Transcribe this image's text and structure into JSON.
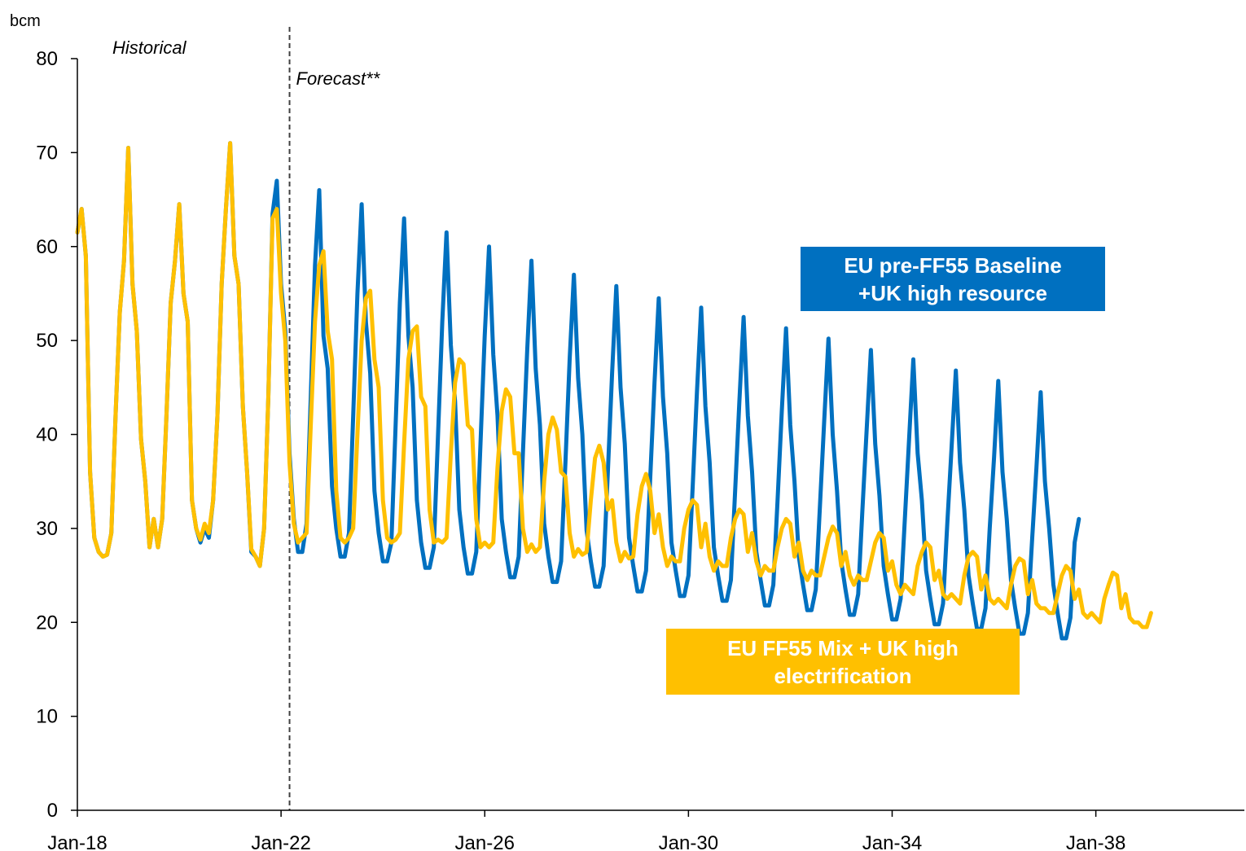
{
  "chart_data": {
    "type": "line",
    "ylabel": "bcm",
    "ylim": [
      0,
      80
    ],
    "yticks": [
      0,
      10,
      20,
      30,
      40,
      50,
      60,
      70,
      80
    ],
    "xlim": [
      "2018-01",
      "2040-12"
    ],
    "xtick_labels": [
      {
        "date": "2018-01",
        "label": "Jan-18"
      },
      {
        "date": "2022-01",
        "label": "Jan-22"
      },
      {
        "date": "2026-01",
        "label": "Jan-26"
      },
      {
        "date": "2030-01",
        "label": "Jan-30"
      },
      {
        "date": "2034-01",
        "label": "Jan-34"
      },
      {
        "date": "2038-01",
        "label": "Jan-38"
      }
    ],
    "grid": false,
    "annotations": {
      "historical": "Historical",
      "forecast": "Forecast**",
      "divider_date": "2022-03"
    },
    "series_start": "2018-01",
    "series": [
      {
        "name": "EU pre-FF55 Baseline\n+UK high resource",
        "color": "#0070C0",
        "values": [
          61.5,
          64.0,
          59.0,
          36.0,
          29.0,
          27.5,
          27.0,
          27.2,
          29.5,
          42.0,
          53.0,
          58.5,
          70.5,
          56.0,
          51.0,
          39.5,
          35.0,
          28.0,
          31.0,
          28.0,
          31.0,
          42.0,
          54.0,
          58.5,
          64.5,
          55.0,
          52.0,
          33.0,
          30.0,
          28.5,
          30.0,
          29.0,
          33.0,
          42.0,
          56.0,
          64.0,
          71.0,
          59.0,
          56.0,
          43.0,
          36.0,
          27.5,
          27.0,
          26.0,
          30.0,
          44.0,
          63.5,
          67.0,
          56.0,
          51.0,
          38.0,
          31.0,
          27.5,
          27.5,
          30.5,
          44.0,
          58.0,
          66.0,
          50.5,
          47.0,
          34.5,
          30.0,
          27.0,
          27.0,
          29.5,
          42.0,
          55.0,
          64.5,
          52.0,
          46.5,
          34.0,
          29.5,
          26.5,
          26.5,
          28.5,
          41.0,
          54.0,
          63.0,
          50.5,
          45.0,
          33.0,
          28.5,
          25.8,
          25.8,
          28.0,
          40.0,
          52.0,
          61.5,
          49.5,
          43.5,
          32.0,
          28.0,
          25.2,
          25.2,
          27.5,
          39.0,
          50.5,
          60.0,
          48.5,
          42.0,
          31.0,
          27.5,
          24.8,
          24.8,
          27.0,
          38.0,
          49.0,
          58.5,
          47.0,
          41.0,
          30.5,
          27.0,
          24.3,
          24.3,
          26.5,
          37.0,
          48.0,
          57.0,
          46.0,
          40.0,
          29.8,
          26.5,
          23.8,
          23.8,
          26.0,
          36.0,
          46.5,
          55.8,
          45.0,
          39.0,
          29.0,
          26.0,
          23.3,
          23.3,
          25.5,
          35.5,
          45.5,
          54.5,
          44.0,
          38.0,
          28.5,
          25.5,
          22.8,
          22.8,
          25.0,
          34.5,
          44.5,
          53.5,
          43.0,
          37.0,
          28.0,
          25.0,
          22.3,
          22.3,
          24.5,
          34.0,
          43.5,
          52.5,
          42.0,
          36.0,
          27.5,
          24.5,
          21.8,
          21.8,
          24.0,
          33.0,
          42.5,
          51.3,
          41.0,
          35.0,
          27.0,
          24.0,
          21.3,
          21.3,
          23.5,
          32.5,
          41.5,
          50.2,
          40.0,
          34.0,
          26.5,
          23.5,
          20.8,
          20.8,
          23.0,
          32.0,
          40.5,
          49.0,
          39.0,
          33.5,
          26.0,
          23.0,
          20.3,
          20.3,
          22.5,
          31.0,
          39.5,
          48.0,
          38.0,
          33.0,
          25.5,
          22.5,
          19.8,
          19.8,
          22.0,
          30.5,
          38.5,
          46.8,
          37.0,
          32.0,
          25.0,
          22.0,
          19.3,
          19.3,
          21.5,
          30.0,
          37.5,
          45.7,
          36.0,
          31.0,
          24.5,
          21.5,
          18.8,
          18.8,
          21.0,
          29.0,
          36.5,
          44.5,
          35.0,
          30.0,
          24.0,
          21.0,
          18.3,
          18.3,
          20.5,
          28.5,
          31.0
        ]
      },
      {
        "name": "EU FF55 Mix + UK high\nelectrification",
        "color": "#FFC000",
        "values": [
          61.5,
          64.0,
          59.0,
          36.0,
          29.0,
          27.5,
          27.0,
          27.2,
          29.5,
          42.0,
          53.0,
          58.5,
          70.5,
          56.0,
          51.0,
          39.5,
          35.0,
          28.0,
          31.0,
          28.0,
          31.0,
          42.0,
          54.0,
          58.5,
          64.5,
          55.0,
          52.0,
          33.0,
          30.0,
          28.8,
          30.5,
          29.5,
          33.0,
          42.0,
          56.0,
          64.0,
          71.0,
          59.0,
          56.0,
          43.0,
          36.0,
          27.8,
          27.0,
          26.0,
          30.0,
          44.0,
          63.0,
          64.0,
          55.0,
          50.0,
          37.0,
          30.5,
          28.5,
          29.0,
          29.5,
          41.0,
          52.0,
          58.0,
          59.5,
          51.0,
          48.0,
          34.0,
          29.0,
          28.5,
          29.0,
          30.0,
          40.0,
          50.0,
          54.5,
          55.3,
          48.0,
          45.0,
          33.0,
          29.0,
          28.5,
          28.8,
          29.5,
          39.0,
          48.0,
          51.0,
          51.5,
          44.0,
          43.0,
          32.0,
          28.5,
          28.8,
          28.5,
          29.0,
          38.0,
          45.5,
          48.0,
          47.5,
          41.0,
          40.5,
          31.0,
          28.0,
          28.5,
          28.0,
          28.5,
          36.5,
          42.5,
          44.8,
          44.0,
          38.0,
          38.0,
          30.0,
          27.5,
          28.3,
          27.5,
          28.0,
          35.0,
          40.0,
          41.8,
          40.5,
          36.0,
          35.5,
          29.5,
          27.0,
          27.8,
          27.2,
          27.5,
          33.0,
          37.5,
          38.8,
          37.0,
          32.0,
          33.0,
          28.5,
          26.5,
          27.5,
          26.8,
          27.0,
          31.5,
          34.5,
          35.8,
          34.0,
          29.5,
          31.5,
          28.0,
          26.0,
          27.0,
          26.5,
          26.5,
          30.0,
          32.0,
          33.0,
          32.5,
          28.0,
          30.5,
          27.0,
          25.5,
          26.5,
          26.0,
          26.0,
          29.0,
          31.0,
          32.0,
          31.5,
          27.5,
          29.5,
          26.5,
          25.0,
          26.0,
          25.5,
          25.5,
          28.0,
          30.0,
          31.0,
          30.5,
          27.0,
          28.5,
          25.5,
          24.5,
          25.5,
          25.0,
          25.0,
          27.0,
          29.0,
          30.2,
          29.5,
          26.0,
          27.5,
          25.0,
          24.0,
          25.0,
          24.5,
          24.5,
          26.5,
          28.5,
          29.5,
          29.0,
          25.5,
          26.5,
          24.0,
          23.0,
          24.0,
          23.5,
          23.0,
          26.0,
          27.5,
          28.5,
          28.0,
          24.5,
          25.5,
          23.0,
          22.5,
          23.0,
          22.5,
          22.0,
          25.0,
          27.0,
          27.5,
          27.0,
          23.5,
          25.0,
          22.5,
          22.0,
          22.5,
          22.0,
          21.5,
          24.0,
          26.0,
          26.8,
          26.5,
          23.0,
          24.5,
          22.0,
          21.5,
          21.5,
          21.0,
          21.0,
          23.0,
          25.0,
          26.0,
          25.5,
          22.5,
          23.5,
          21.0,
          20.5,
          21.0,
          20.5,
          20.0,
          22.5,
          24.0,
          25.3,
          25.0,
          21.5,
          23.0,
          20.5,
          20.0,
          20.0,
          19.5,
          19.5,
          21.0
        ]
      }
    ]
  }
}
